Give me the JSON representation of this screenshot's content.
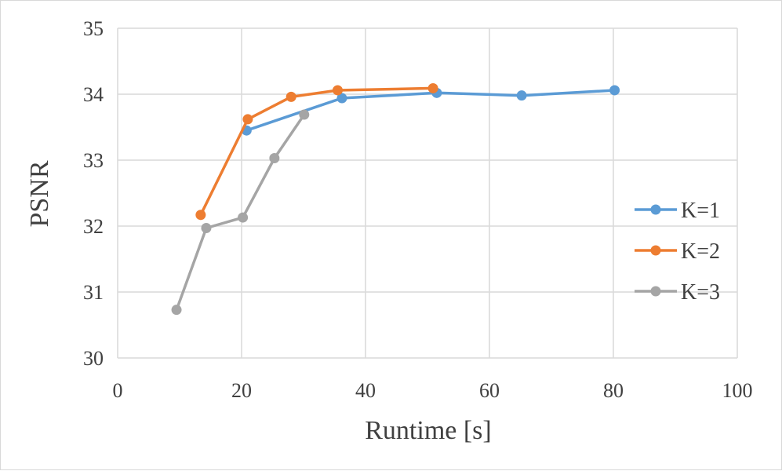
{
  "chart_data": {
    "type": "line",
    "title": "",
    "xlabel": "Runtime [s]",
    "ylabel": "PSNR",
    "xlim": [
      0,
      100
    ],
    "ylim": [
      30,
      35
    ],
    "xticks": [
      0,
      20,
      40,
      60,
      80,
      100
    ],
    "yticks": [
      30,
      31,
      32,
      33,
      34,
      35
    ],
    "grid": true,
    "legend_position": "right",
    "series": [
      {
        "name": "K=1",
        "color": "#5b9bd5",
        "points": [
          [
            20.8,
            33.45
          ],
          [
            36.2,
            33.94
          ],
          [
            51.5,
            34.02
          ],
          [
            65.2,
            33.98
          ],
          [
            80.2,
            34.06
          ]
        ]
      },
      {
        "name": "K=2",
        "color": "#ed7d31",
        "points": [
          [
            13.4,
            32.17
          ],
          [
            21.0,
            33.62
          ],
          [
            28.0,
            33.96
          ],
          [
            35.5,
            34.06
          ],
          [
            50.9,
            34.09
          ]
        ]
      },
      {
        "name": "K=3",
        "color": "#a5a5a5",
        "points": [
          [
            9.5,
            30.73
          ],
          [
            14.3,
            31.97
          ],
          [
            20.2,
            32.13
          ],
          [
            25.3,
            33.03
          ],
          [
            30.1,
            33.69
          ]
        ]
      }
    ]
  }
}
